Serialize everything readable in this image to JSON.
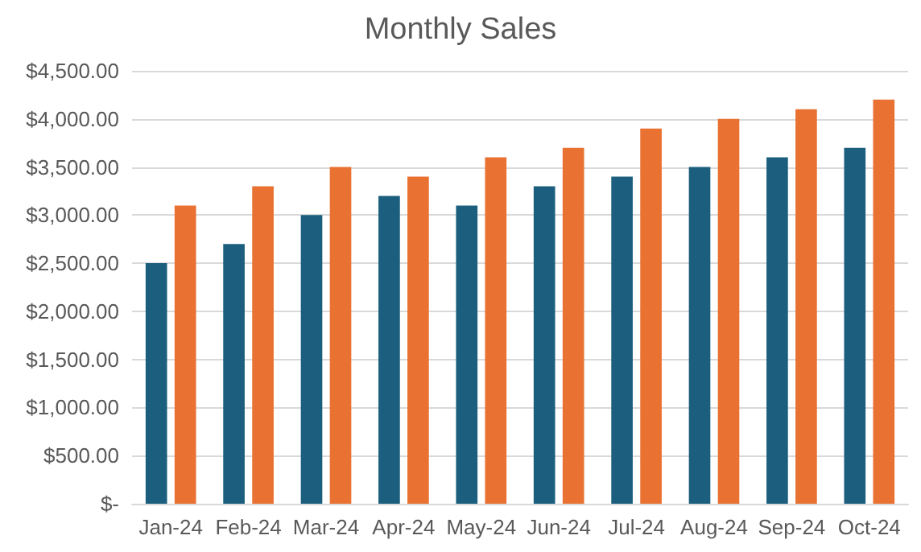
{
  "chart_data": {
    "type": "bar",
    "title": "Monthly Sales",
    "categories": [
      "Jan-24",
      "Feb-24",
      "Mar-24",
      "Apr-24",
      "May-24",
      "Jun-24",
      "Jul-24",
      "Aug-24",
      "Sep-24",
      "Oct-24"
    ],
    "series": [
      {
        "color": "#1b5e7e",
        "values": [
          2500,
          2700,
          3000,
          3200,
          3100,
          3300,
          3400,
          3500,
          3600,
          3700
        ]
      },
      {
        "color": "#e97132",
        "values": [
          3100,
          3300,
          3500,
          3400,
          3600,
          3700,
          3900,
          4000,
          4100,
          4200
        ]
      }
    ],
    "ylim": [
      0,
      4500
    ],
    "yticks": [
      {
        "value": 0,
        "label": "$-"
      },
      {
        "value": 500,
        "label": "$500.00"
      },
      {
        "value": 1000,
        "label": "$1,000.00"
      },
      {
        "value": 1500,
        "label": "$1,500.00"
      },
      {
        "value": 2000,
        "label": "$2,000.00"
      },
      {
        "value": 2500,
        "label": "$2,500.00"
      },
      {
        "value": 3000,
        "label": "$3,000.00"
      },
      {
        "value": 3500,
        "label": "$3,500.00"
      },
      {
        "value": 4000,
        "label": "$4,000.00"
      },
      {
        "value": 4500,
        "label": "$4,500.00"
      }
    ],
    "grid": "y"
  }
}
